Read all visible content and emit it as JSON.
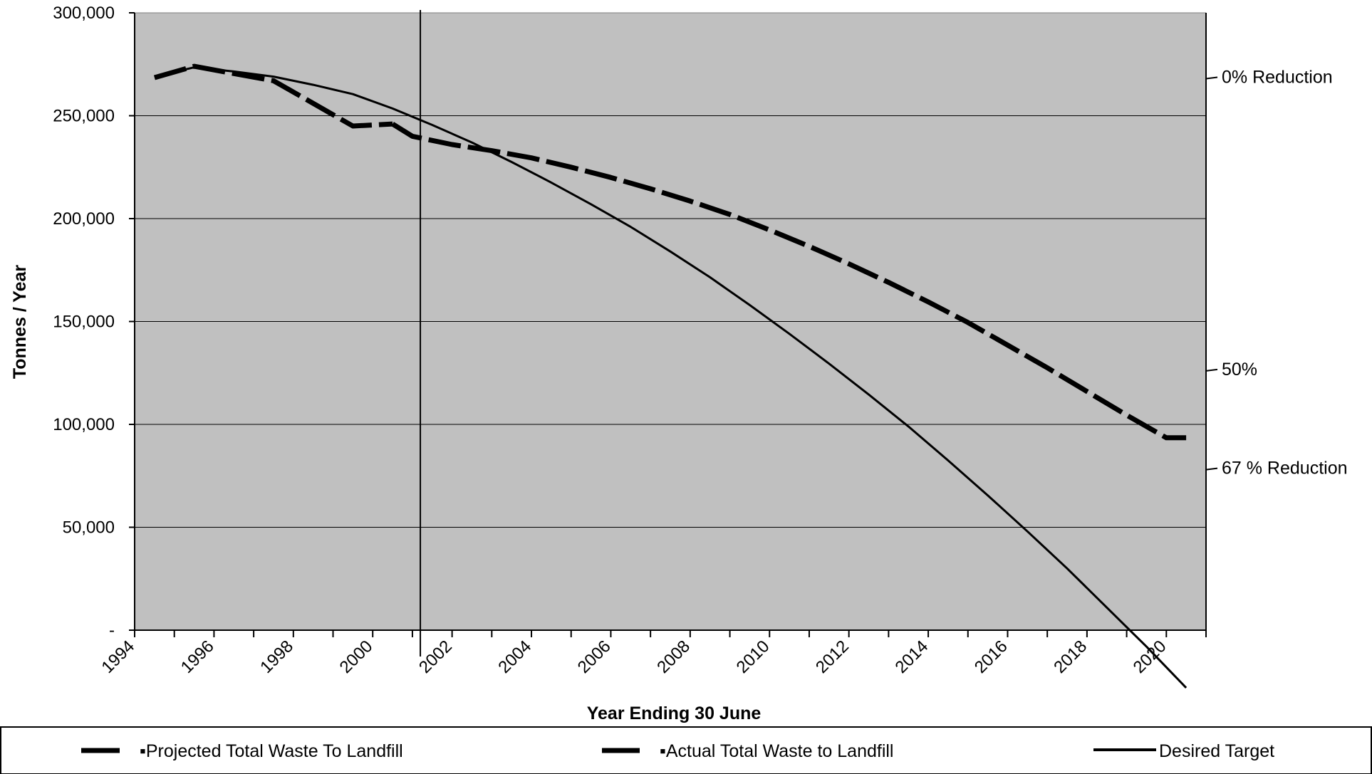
{
  "chart_data": {
    "type": "line",
    "xlabel": "Year Ending 30 June",
    "ylabel": "Tonnes / Year",
    "xlim": [
      1994,
      2021
    ],
    "ylim": [
      0,
      300000
    ],
    "x_ticks": [
      "1994",
      "1996",
      "1998",
      "2000",
      "2002",
      "2004",
      "2006",
      "2008",
      "2010",
      "2012",
      "2014",
      "2016",
      "2018",
      "2020"
    ],
    "y_ticks": [
      {
        "value": 0,
        "label": "-"
      },
      {
        "value": 50000,
        "label": "50,000"
      },
      {
        "value": 100000,
        "label": "100,000"
      },
      {
        "value": 150000,
        "label": "150,000"
      },
      {
        "value": 200000,
        "label": "200,000"
      },
      {
        "value": 250000,
        "label": "250,000"
      },
      {
        "value": 300000,
        "label": "300,000"
      }
    ],
    "grid": true,
    "background": "#c0c0c0",
    "reference_line_x": 2001.2,
    "right_annotations": [
      {
        "value": 268000,
        "label": "0% Reduction"
      },
      {
        "value": 126000,
        "label": "50%"
      },
      {
        "value": 78000,
        "label": "67 % Reduction"
      }
    ],
    "series": [
      {
        "name": "Projected Total Waste To Landfill",
        "style": "dashed",
        "x": [
          2000.5,
          2001,
          2002,
          2003,
          2004,
          2005,
          2006,
          2007,
          2008,
          2009,
          2010,
          2011,
          2012,
          2013,
          2014,
          2015,
          2016,
          2017,
          2018,
          2019,
          2020,
          2020.5
        ],
        "values": [
          246000,
          240000,
          236000,
          233000,
          229500,
          225000,
          220000,
          214500,
          208500,
          202000,
          194500,
          186500,
          178000,
          169000,
          159500,
          149500,
          138500,
          127500,
          116000,
          104500,
          93500,
          93500
        ]
      },
      {
        "name": "Actual Total Waste to Landfill",
        "style": "dashed",
        "x": [
          1994.5,
          1995.5,
          1996.5,
          1997.5,
          1998.5,
          1999.5,
          2000.5
        ],
        "values": [
          268500,
          274000,
          270500,
          267000,
          256000,
          245000,
          246000
        ]
      },
      {
        "name": "Desired Target",
        "style": "solid",
        "x": [
          1994.5,
          1995.5,
          1996.5,
          1997.5,
          1998.5,
          1999.5,
          2000.5,
          2001.5,
          2002.5,
          2003.5,
          2004.5,
          2005.5,
          2006.5,
          2007.5,
          2008.5,
          2009.5,
          2010.5,
          2011.5,
          2012.5,
          2013.5,
          2014.5,
          2015.5,
          2016.5,
          2017.5,
          2018.5,
          2019.5,
          2020.5
        ],
        "values": [
          269000,
          273500,
          271500,
          269000,
          265000,
          260500,
          253500,
          245500,
          237000,
          227500,
          217500,
          207000,
          196000,
          184000,
          171500,
          158000,
          144000,
          129500,
          114500,
          99000,
          82500,
          65500,
          48000,
          30000,
          11000,
          -8000,
          -28000
        ]
      }
    ],
    "legend": {
      "placement": "bottom",
      "entries": [
        {
          "label": "▪Projected Total Waste To Landfill",
          "style": "dashed"
        },
        {
          "label": "▪Actual Total Waste to Landfill",
          "style": "dashed"
        },
        {
          "label": "Desired Target",
          "style": "solid"
        }
      ]
    }
  }
}
